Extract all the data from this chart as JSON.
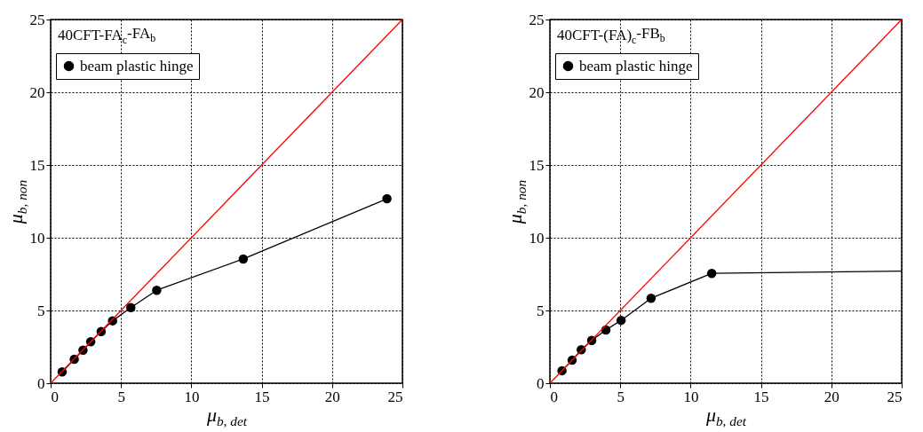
{
  "chart_data": [
    {
      "type": "line",
      "xlabel": "μ$_{b, det}$",
      "ylabel": "μ$_{b, non}$",
      "annotations": [
        "40CFT-FA$_{c}$-FA$_{b}$"
      ],
      "xlim": [
        0,
        25
      ],
      "ylim": [
        0,
        25
      ],
      "xticks": [
        0,
        5,
        10,
        15,
        20,
        25
      ],
      "yticks": [
        0,
        5,
        10,
        15,
        20,
        25
      ],
      "grid": true,
      "legend": "top left",
      "series": [
        {
          "name": "beam plastic hinge",
          "color": "#000000",
          "marker": "circle",
          "x": [
            0.82,
            1.68,
            2.3,
            2.85,
            3.59,
            4.4,
            5.7,
            7.54,
            13.69,
            23.9
          ],
          "values": [
            0.78,
            1.65,
            2.27,
            2.85,
            3.55,
            4.29,
            5.2,
            6.39,
            8.54,
            12.68
          ]
        },
        {
          "color": "#ff0000",
          "marker": "none",
          "x": [
            0,
            25
          ],
          "values": [
            0,
            25
          ]
        }
      ]
    },
    {
      "type": "line",
      "xlabel": "μ$_{b, det}$",
      "ylabel": "μ$_{b, non}$",
      "annotations": [
        "40CFT-(FA)$_{c}$-FB$_{b}$"
      ],
      "xlim": [
        0,
        25
      ],
      "ylim": [
        0,
        25
      ],
      "xticks": [
        0,
        5,
        10,
        15,
        20,
        25
      ],
      "yticks": [
        0,
        5,
        10,
        15,
        20,
        25
      ],
      "grid": true,
      "legend": "top left",
      "series": [
        {
          "name": "beam plastic hinge",
          "color": "#000000",
          "marker": "circle",
          "x": [
            0.86,
            1.58,
            2.23,
            2.97,
            3.98,
            5.06,
            7.19,
            11.5
          ],
          "values": [
            0.86,
            1.58,
            2.3,
            2.94,
            3.66,
            4.32,
            5.84,
            7.55
          ]
        },
        {
          "color": "#000000",
          "marker": "none",
          "x": [
            11.5,
            25
          ],
          "values": [
            7.55,
            7.7
          ]
        },
        {
          "color": "#ff0000",
          "marker": "none",
          "x": [
            0,
            25
          ],
          "values": [
            0,
            25
          ]
        }
      ]
    }
  ]
}
